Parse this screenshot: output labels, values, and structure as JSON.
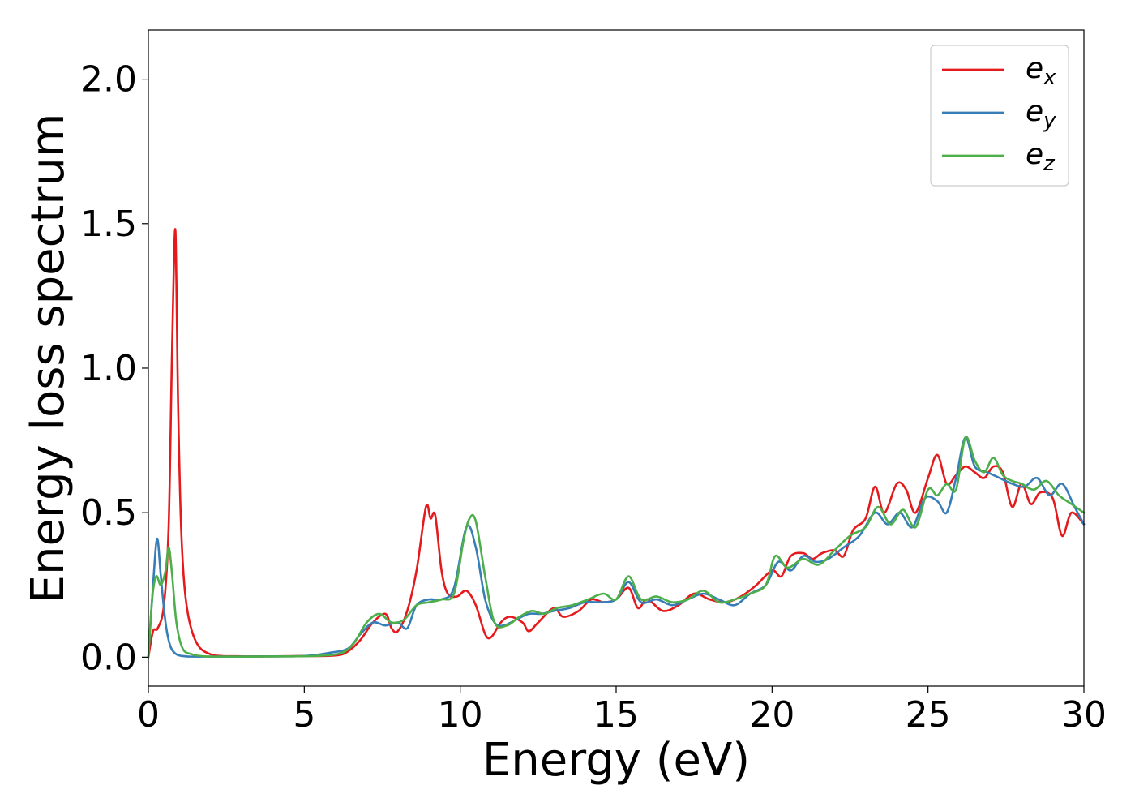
{
  "chart_data": {
    "type": "line",
    "title": "",
    "xlabel": "Energy (eV)",
    "ylabel": "Energy loss spectrum",
    "xlim": [
      0,
      30
    ],
    "ylim": [
      -0.1,
      2.17
    ],
    "xticks": [
      0,
      5,
      10,
      15,
      20,
      25,
      30
    ],
    "xtick_labels": [
      "0",
      "5",
      "10",
      "15",
      "20",
      "25",
      "30"
    ],
    "yticks": [
      0.0,
      0.5,
      1.0,
      1.5,
      2.0
    ],
    "ytick_labels": [
      "0.0",
      "0.5",
      "1.0",
      "1.5",
      "2.0"
    ],
    "grid": false,
    "legend_position": "top-right",
    "series": [
      {
        "name": "e",
        "subscript": "x",
        "color": "#e41a1c",
        "x": [
          0,
          0.15,
          0.3,
          0.5,
          0.65,
          0.75,
          0.85,
          0.9,
          0.95,
          1.05,
          1.2,
          1.5,
          2,
          3,
          4,
          5,
          6,
          6.4,
          6.8,
          7.2,
          7.6,
          7.8,
          8,
          8.3,
          8.6,
          8.9,
          9.05,
          9.2,
          9.4,
          9.6,
          9.9,
          10.2,
          10.5,
          10.8,
          11,
          11.3,
          11.6,
          12,
          12.2,
          12.5,
          13,
          13.3,
          13.8,
          14.2,
          14.6,
          15,
          15.4,
          15.7,
          16,
          16.5,
          17,
          17.5,
          18,
          18.5,
          19,
          19.5,
          20,
          20.3,
          20.6,
          21,
          21.3,
          21.6,
          22,
          22.3,
          22.6,
          23,
          23.3,
          23.6,
          24,
          24.3,
          24.6,
          25,
          25.3,
          25.6,
          25.9,
          26.2,
          26.5,
          26.8,
          27.1,
          27.4,
          27.7,
          28,
          28.3,
          28.6,
          29,
          29.3,
          29.6,
          30
        ],
        "y": [
          0.0,
          0.09,
          0.1,
          0.18,
          0.45,
          1.0,
          1.47,
          1.3,
          0.9,
          0.45,
          0.2,
          0.06,
          0.01,
          0.003,
          0.003,
          0.004,
          0.006,
          0.02,
          0.06,
          0.12,
          0.15,
          0.1,
          0.09,
          0.16,
          0.3,
          0.52,
          0.48,
          0.49,
          0.3,
          0.22,
          0.21,
          0.23,
          0.18,
          0.08,
          0.07,
          0.12,
          0.14,
          0.12,
          0.09,
          0.12,
          0.17,
          0.14,
          0.16,
          0.2,
          0.19,
          0.2,
          0.24,
          0.17,
          0.2,
          0.16,
          0.18,
          0.22,
          0.2,
          0.19,
          0.21,
          0.25,
          0.3,
          0.28,
          0.35,
          0.36,
          0.34,
          0.36,
          0.37,
          0.35,
          0.44,
          0.48,
          0.59,
          0.5,
          0.6,
          0.58,
          0.5,
          0.62,
          0.7,
          0.6,
          0.63,
          0.66,
          0.64,
          0.62,
          0.66,
          0.64,
          0.52,
          0.6,
          0.53,
          0.57,
          0.55,
          0.42,
          0.5,
          0.46
        ]
      },
      {
        "name": "e",
        "subscript": "y",
        "color": "#377eb8",
        "x": [
          0,
          0.15,
          0.28,
          0.4,
          0.55,
          0.7,
          0.9,
          1.2,
          1.5,
          2,
          3,
          4,
          5,
          5.8,
          6.4,
          6.8,
          7.2,
          7.6,
          8,
          8.3,
          8.6,
          9,
          9.4,
          9.8,
          10.2,
          10.5,
          10.8,
          11.1,
          11.4,
          11.8,
          12.2,
          12.6,
          13,
          13.5,
          14,
          14.5,
          15,
          15.4,
          15.8,
          16.3,
          16.8,
          17.3,
          17.8,
          18.3,
          18.8,
          19.3,
          19.8,
          20.2,
          20.6,
          21,
          21.4,
          21.8,
          22.3,
          22.8,
          23.3,
          23.7,
          24.1,
          24.5,
          24.9,
          25.3,
          25.6,
          25.9,
          26.2,
          26.5,
          26.9,
          27.3,
          27.7,
          28.1,
          28.5,
          28.9,
          29.3,
          29.7,
          30
        ],
        "y": [
          0.0,
          0.25,
          0.41,
          0.28,
          0.12,
          0.04,
          0.01,
          0.003,
          0.002,
          0.002,
          0.002,
          0.003,
          0.004,
          0.015,
          0.03,
          0.08,
          0.12,
          0.11,
          0.12,
          0.1,
          0.18,
          0.2,
          0.2,
          0.24,
          0.45,
          0.38,
          0.2,
          0.12,
          0.11,
          0.13,
          0.15,
          0.15,
          0.16,
          0.17,
          0.19,
          0.19,
          0.2,
          0.26,
          0.19,
          0.2,
          0.18,
          0.2,
          0.22,
          0.2,
          0.18,
          0.22,
          0.25,
          0.33,
          0.3,
          0.35,
          0.33,
          0.34,
          0.38,
          0.42,
          0.5,
          0.46,
          0.5,
          0.45,
          0.55,
          0.54,
          0.5,
          0.62,
          0.76,
          0.66,
          0.64,
          0.62,
          0.6,
          0.59,
          0.62,
          0.56,
          0.6,
          0.52,
          0.46
        ]
      },
      {
        "name": "e",
        "subscript": "z",
        "color": "#4daf4a",
        "x": [
          0,
          0.12,
          0.25,
          0.4,
          0.55,
          0.65,
          0.75,
          0.9,
          1.1,
          1.4,
          1.8,
          2.5,
          3.5,
          4.5,
          5.5,
          6.2,
          6.6,
          7,
          7.4,
          7.8,
          8.2,
          8.6,
          9,
          9.4,
          9.8,
          10.1,
          10.3,
          10.5,
          10.8,
          11.1,
          11.5,
          11.9,
          12.3,
          12.7,
          13.1,
          13.6,
          14.1,
          14.6,
          15,
          15.4,
          15.8,
          16.3,
          16.8,
          17.3,
          17.8,
          18.3,
          18.8,
          19.3,
          19.8,
          20.1,
          20.5,
          21,
          21.5,
          22,
          22.5,
          23,
          23.4,
          23.8,
          24.2,
          24.6,
          25,
          25.3,
          25.6,
          25.9,
          26.2,
          26.5,
          26.8,
          27.1,
          27.4,
          27.7,
          28,
          28.4,
          28.8,
          29.2,
          29.6,
          30
        ],
        "y": [
          0.0,
          0.2,
          0.28,
          0.25,
          0.3,
          0.38,
          0.3,
          0.12,
          0.03,
          0.01,
          0.003,
          0.002,
          0.002,
          0.003,
          0.005,
          0.015,
          0.05,
          0.12,
          0.15,
          0.12,
          0.13,
          0.18,
          0.19,
          0.2,
          0.22,
          0.4,
          0.48,
          0.47,
          0.28,
          0.12,
          0.11,
          0.14,
          0.16,
          0.15,
          0.17,
          0.18,
          0.2,
          0.22,
          0.2,
          0.28,
          0.2,
          0.21,
          0.19,
          0.2,
          0.23,
          0.19,
          0.2,
          0.22,
          0.25,
          0.35,
          0.31,
          0.34,
          0.32,
          0.37,
          0.42,
          0.45,
          0.52,
          0.46,
          0.51,
          0.45,
          0.58,
          0.56,
          0.6,
          0.58,
          0.76,
          0.68,
          0.64,
          0.69,
          0.63,
          0.61,
          0.6,
          0.58,
          0.61,
          0.56,
          0.53,
          0.5
        ]
      }
    ]
  }
}
